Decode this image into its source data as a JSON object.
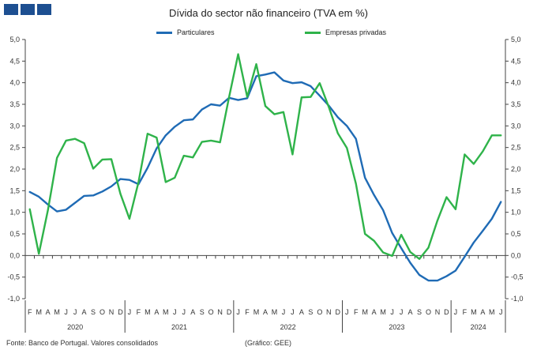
{
  "header": {
    "logo_icon": "bank-logo-icon"
  },
  "chart_data": {
    "type": "line",
    "title": "Dívida do sector não financeiro (TVA em %)",
    "ylim": [
      -1.0,
      5.0
    ],
    "yticks": [
      "5,0",
      "4,5",
      "4,0",
      "3,5",
      "3,0",
      "2,5",
      "2,0",
      "1,5",
      "1,0",
      "0,5",
      "0,0",
      "-0,5",
      "-1,0"
    ],
    "grid": false,
    "legend_position": "top",
    "month_labels": [
      "F",
      "M",
      "A",
      "M",
      "J",
      "J",
      "A",
      "S",
      "O",
      "N",
      "D",
      "J",
      "F",
      "M",
      "A",
      "M",
      "J",
      "J",
      "A",
      "S",
      "O",
      "N",
      "D",
      "J",
      "F",
      "M",
      "A",
      "M",
      "J",
      "J",
      "A",
      "S",
      "O",
      "N",
      "D",
      "J",
      "F",
      "M",
      "A",
      "M",
      "J",
      "J",
      "A",
      "S",
      "O",
      "N",
      "D",
      "J",
      "F",
      "M",
      "A",
      "M",
      "J"
    ],
    "years": [
      {
        "label": "2020",
        "months": 11
      },
      {
        "label": "2021",
        "months": 12
      },
      {
        "label": "2022",
        "months": 12
      },
      {
        "label": "2023",
        "months": 12
      },
      {
        "label": "2024",
        "months": 6
      }
    ],
    "series": [
      {
        "name": "Particulares",
        "color": "#1f6bb5",
        "values": [
          1.47,
          1.36,
          1.18,
          1.02,
          1.06,
          1.22,
          1.38,
          1.39,
          1.48,
          1.6,
          1.77,
          1.75,
          1.65,
          2.03,
          2.48,
          2.78,
          2.98,
          3.13,
          3.15,
          3.38,
          3.5,
          3.47,
          3.65,
          3.6,
          3.64,
          4.15,
          4.19,
          4.24,
          4.05,
          3.99,
          4.01,
          3.92,
          3.7,
          3.47,
          3.2,
          3.0,
          2.7,
          1.8,
          1.4,
          1.05,
          0.52,
          0.17,
          -0.17,
          -0.45,
          -0.58,
          -0.58,
          -0.48,
          -0.35,
          -0.03,
          0.3,
          0.57,
          0.85,
          1.24
        ]
      },
      {
        "name": "Empresas privadas",
        "color": "#2fb34a",
        "values": [
          1.07,
          0.04,
          1.05,
          2.26,
          2.66,
          2.7,
          2.6,
          2.01,
          2.22,
          2.23,
          1.43,
          0.85,
          1.7,
          2.82,
          2.73,
          1.7,
          1.8,
          2.31,
          2.27,
          2.63,
          2.66,
          2.62,
          3.67,
          4.66,
          3.67,
          4.43,
          3.46,
          3.27,
          3.32,
          2.34,
          3.66,
          3.67,
          3.99,
          3.44,
          2.83,
          2.49,
          1.66,
          0.5,
          0.34,
          0.07,
          -0.01,
          0.48,
          0.08,
          -0.08,
          0.18,
          0.81,
          1.35,
          1.07,
          2.34,
          2.12,
          2.41,
          2.78,
          2.78
        ]
      }
    ]
  },
  "footer": {
    "source": "Fonte: Banco de Portugal. Valores consolidados",
    "credit": "(Gráfico: GEE)"
  }
}
